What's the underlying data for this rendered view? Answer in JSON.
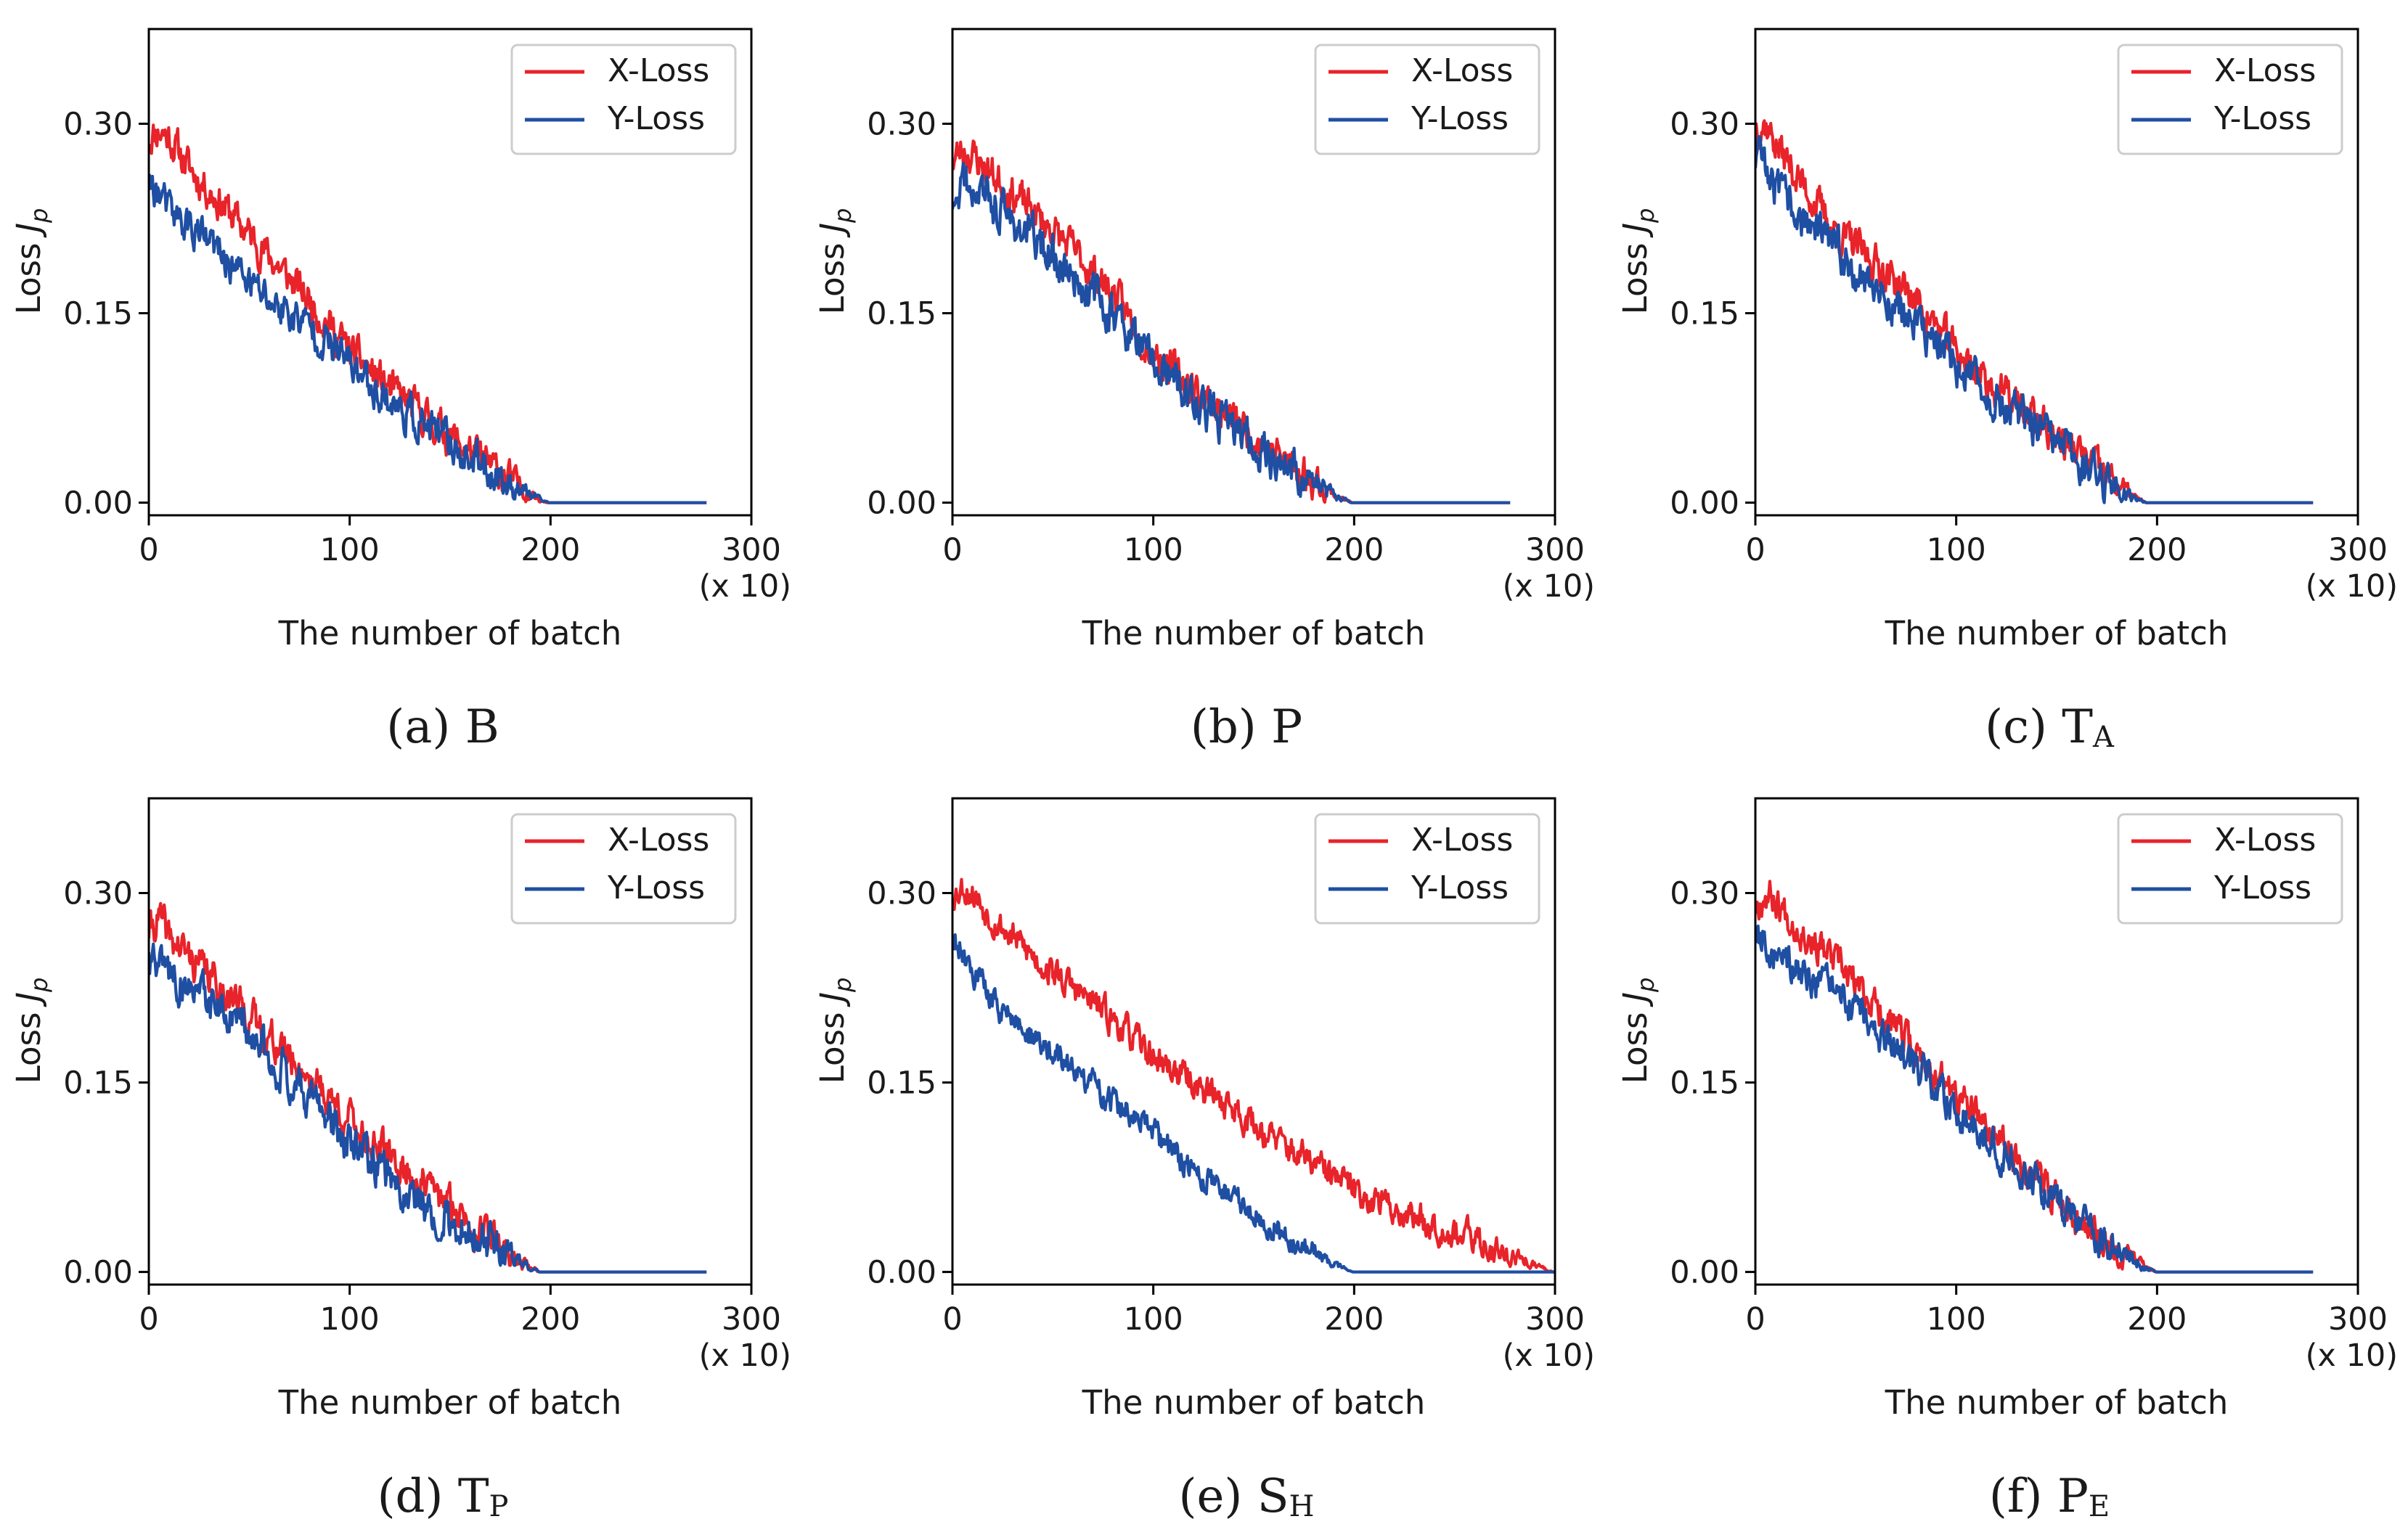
{
  "colors": {
    "x_loss": "#e8232a",
    "y_loss": "#1f4fa3",
    "axis": "#000000",
    "legend_border": "#cccccc"
  },
  "common": {
    "xlabel": "The number of batch",
    "xunit": "(x 10)",
    "ylabel": "Loss",
    "ylabel_symbol": "J",
    "ylabel_sub": "p",
    "legend": [
      "X-Loss",
      "Y-Loss"
    ],
    "xticks": [
      "0",
      "100",
      "200",
      "300"
    ],
    "yticks": [
      "0.00",
      "0.15",
      "0.30"
    ]
  },
  "chart_data": [
    {
      "type": "line",
      "caption_prefix": "(a)",
      "caption_main": "B",
      "caption_sub": "",
      "xlim": [
        0,
        300
      ],
      "ylim": [
        -0.01,
        0.375
      ],
      "seed": 11,
      "series": [
        {
          "name": "X-Loss",
          "x": [
            0,
            5,
            10,
            20,
            40,
            60,
            80,
            100,
            120,
            140,
            160,
            180,
            195,
            200,
            278
          ],
          "values": [
            0.29,
            0.295,
            0.29,
            0.265,
            0.23,
            0.195,
            0.16,
            0.12,
            0.09,
            0.065,
            0.04,
            0.018,
            0.002,
            0.0,
            0.0
          ],
          "noise": 0.012
        },
        {
          "name": "Y-Loss",
          "x": [
            0,
            5,
            10,
            20,
            40,
            60,
            80,
            100,
            120,
            140,
            160,
            180,
            195,
            200,
            278
          ],
          "values": [
            0.255,
            0.245,
            0.23,
            0.22,
            0.19,
            0.16,
            0.14,
            0.11,
            0.08,
            0.058,
            0.035,
            0.015,
            0.002,
            0.0,
            0.0
          ],
          "noise": 0.012
        }
      ]
    },
    {
      "type": "line",
      "caption_prefix": "(b)",
      "caption_main": "P",
      "caption_sub": "",
      "xlim": [
        0,
        300
      ],
      "ylim": [
        -0.01,
        0.375
      ],
      "seed": 23,
      "series": [
        {
          "name": "X-Loss",
          "x": [
            0,
            5,
            10,
            20,
            40,
            60,
            80,
            100,
            120,
            140,
            160,
            180,
            195,
            200,
            278
          ],
          "values": [
            0.27,
            0.28,
            0.275,
            0.26,
            0.23,
            0.2,
            0.165,
            0.12,
            0.09,
            0.065,
            0.04,
            0.018,
            0.002,
            0.0,
            0.0
          ],
          "noise": 0.012
        },
        {
          "name": "Y-Loss",
          "x": [
            0,
            5,
            10,
            20,
            40,
            60,
            80,
            100,
            120,
            140,
            160,
            180,
            195,
            200,
            278
          ],
          "values": [
            0.245,
            0.255,
            0.25,
            0.235,
            0.21,
            0.18,
            0.15,
            0.11,
            0.08,
            0.058,
            0.035,
            0.015,
            0.002,
            0.0,
            0.0
          ],
          "noise": 0.013
        }
      ]
    },
    {
      "type": "line",
      "caption_prefix": "(c)",
      "caption_main": "T",
      "caption_sub": "A",
      "xlim": [
        0,
        300
      ],
      "ylim": [
        -0.01,
        0.375
      ],
      "seed": 37,
      "series": [
        {
          "name": "X-Loss",
          "x": [
            0,
            5,
            10,
            20,
            40,
            60,
            80,
            100,
            120,
            140,
            160,
            180,
            190,
            195,
            278
          ],
          "values": [
            0.3,
            0.3,
            0.285,
            0.26,
            0.215,
            0.19,
            0.16,
            0.12,
            0.09,
            0.065,
            0.04,
            0.015,
            0.003,
            0.0,
            0.0
          ],
          "noise": 0.012
        },
        {
          "name": "Y-Loss",
          "x": [
            0,
            5,
            10,
            20,
            40,
            60,
            80,
            100,
            120,
            140,
            160,
            180,
            190,
            195,
            278
          ],
          "values": [
            0.27,
            0.265,
            0.25,
            0.23,
            0.2,
            0.17,
            0.14,
            0.11,
            0.08,
            0.058,
            0.035,
            0.013,
            0.003,
            0.0,
            0.0
          ],
          "noise": 0.013
        }
      ]
    },
    {
      "type": "line",
      "caption_prefix": "(d)",
      "caption_main": "T",
      "caption_sub": "P",
      "xlim": [
        0,
        300
      ],
      "ylim": [
        -0.01,
        0.375
      ],
      "seed": 41,
      "series": [
        {
          "name": "X-Loss",
          "x": [
            0,
            5,
            10,
            20,
            40,
            60,
            80,
            100,
            120,
            140,
            160,
            180,
            190,
            195,
            278
          ],
          "values": [
            0.27,
            0.28,
            0.265,
            0.25,
            0.22,
            0.185,
            0.155,
            0.12,
            0.09,
            0.065,
            0.04,
            0.015,
            0.004,
            0.0,
            0.0
          ],
          "noise": 0.012
        },
        {
          "name": "Y-Loss",
          "x": [
            0,
            5,
            10,
            20,
            40,
            60,
            80,
            100,
            120,
            140,
            160,
            180,
            190,
            195,
            278
          ],
          "values": [
            0.245,
            0.24,
            0.235,
            0.225,
            0.2,
            0.17,
            0.14,
            0.1,
            0.075,
            0.05,
            0.03,
            0.012,
            0.003,
            0.0,
            0.0
          ],
          "noise": 0.013
        }
      ]
    },
    {
      "type": "line",
      "caption_prefix": "(e)",
      "caption_main": "S",
      "caption_sub": "H",
      "xlim": [
        0,
        300
      ],
      "ylim": [
        -0.01,
        0.375
      ],
      "seed": 53,
      "series": [
        {
          "name": "X-Loss",
          "x": [
            0,
            5,
            10,
            20,
            40,
            60,
            80,
            100,
            120,
            140,
            160,
            180,
            200,
            220,
            240,
            260,
            280,
            295,
            300
          ],
          "values": [
            0.3,
            0.305,
            0.3,
            0.28,
            0.25,
            0.225,
            0.2,
            0.17,
            0.15,
            0.13,
            0.105,
            0.085,
            0.065,
            0.05,
            0.038,
            0.025,
            0.012,
            0.002,
            0.0
          ],
          "noise": 0.01
        },
        {
          "name": "Y-Loss",
          "x": [
            0,
            5,
            10,
            20,
            40,
            60,
            80,
            100,
            120,
            140,
            160,
            180,
            195,
            200,
            300
          ],
          "values": [
            0.265,
            0.255,
            0.24,
            0.215,
            0.185,
            0.16,
            0.135,
            0.11,
            0.08,
            0.06,
            0.035,
            0.015,
            0.003,
            0.0,
            0.0
          ],
          "noise": 0.009
        }
      ]
    },
    {
      "type": "line",
      "caption_prefix": "(f)",
      "caption_main": "P",
      "caption_sub": "E",
      "xlim": [
        0,
        300
      ],
      "ylim": [
        -0.01,
        0.375
      ],
      "seed": 67,
      "series": [
        {
          "name": "X-Loss",
          "x": [
            0,
            5,
            10,
            20,
            40,
            60,
            80,
            100,
            120,
            140,
            160,
            180,
            195,
            200,
            278
          ],
          "values": [
            0.29,
            0.3,
            0.295,
            0.275,
            0.245,
            0.21,
            0.175,
            0.14,
            0.105,
            0.075,
            0.045,
            0.02,
            0.003,
            0.0,
            0.0
          ],
          "noise": 0.011
        },
        {
          "name": "Y-Loss",
          "x": [
            0,
            5,
            10,
            20,
            40,
            60,
            80,
            100,
            120,
            140,
            160,
            180,
            195,
            200,
            278
          ],
          "values": [
            0.27,
            0.265,
            0.25,
            0.24,
            0.22,
            0.19,
            0.16,
            0.13,
            0.1,
            0.07,
            0.043,
            0.018,
            0.003,
            0.0,
            0.0
          ],
          "noise": 0.011
        }
      ]
    }
  ]
}
